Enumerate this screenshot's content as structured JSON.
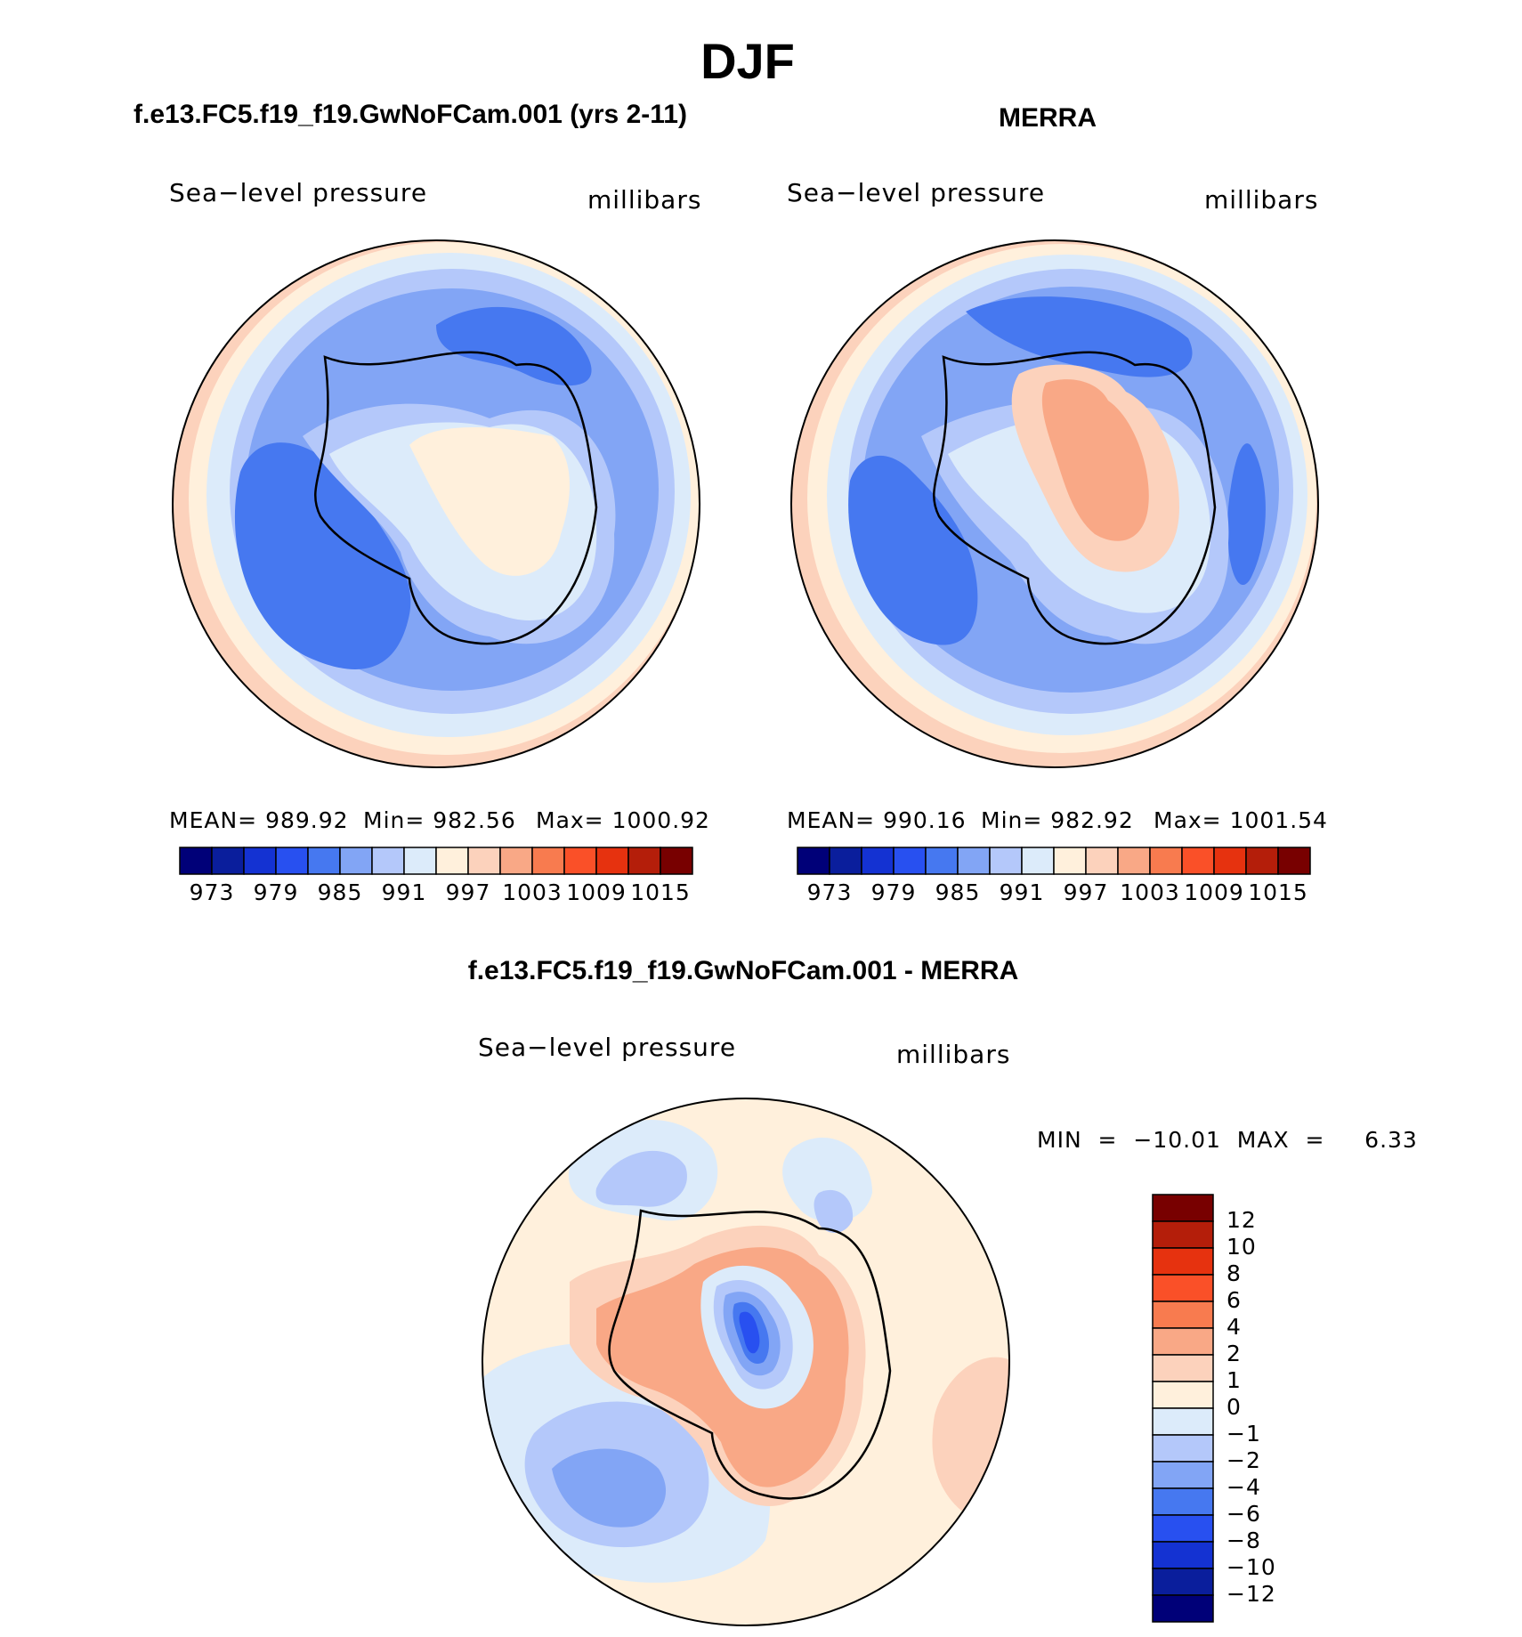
{
  "title": "DJF",
  "panels": [
    {
      "id": "model",
      "title": "f.e13.FC5.f19_f19.GwNoFCam.001 (yrs 2-11)",
      "field_name": "Sea−level pressure",
      "units": "millibars",
      "stats": {
        "mean": "MEAN=  989.92",
        "min": "Min=  982.56",
        "max": "Max=  1000.92"
      }
    },
    {
      "id": "obs",
      "title": "MERRA",
      "field_name": "Sea−level pressure",
      "units": "millibars",
      "stats": {
        "mean": "MEAN=  990.16",
        "min": "Min=  982.92",
        "max": "Max=  1001.54"
      }
    }
  ],
  "difference": {
    "title": "f.e13.FC5.f19_f19.GwNoFCam.001 - MERRA",
    "field_name": "Sea−level pressure",
    "units": "millibars",
    "minmax": "MIN  =  −10.01  MAX  =     6.33"
  },
  "colorbar_abs": {
    "colors": [
      "#000078",
      "#0a1e9c",
      "#1432d2",
      "#2850f0",
      "#4678f0",
      "#82a5f5",
      "#b4c8fa",
      "#dcebfa",
      "#fff0dc",
      "#fcd2bc",
      "#f9a886",
      "#f87b4f",
      "#fa5028",
      "#e6320f",
      "#b41e0a",
      "#780000"
    ],
    "labels": [
      "973",
      "979",
      "985",
      "991",
      "997",
      "1003",
      "1009",
      "1015"
    ]
  },
  "colorbar_diff": {
    "colors": [
      "#780000",
      "#b41e0a",
      "#e6320f",
      "#fa5028",
      "#f87b4f",
      "#f9a886",
      "#fcd2bc",
      "#fff0dc",
      "#dcebfa",
      "#b4c8fa",
      "#82a5f5",
      "#4678f0",
      "#2850f0",
      "#1432d2",
      "#0a1e9c",
      "#000078"
    ],
    "labels": [
      "12",
      "10",
      "8",
      "6",
      "4",
      "2",
      "1",
      "0",
      "−1",
      "−2",
      "−4",
      "−6",
      "−8",
      "−10",
      "−12"
    ]
  }
}
